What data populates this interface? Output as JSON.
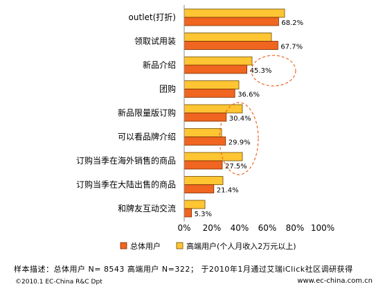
{
  "chart_data": {
    "type": "bar",
    "orientation": "horizontal",
    "categories": [
      "outlet(打折)",
      "领取试用装",
      "新品介绍",
      "团购",
      "新品限量版订购",
      "可以看品牌介绍",
      "订购当季在海外销售的商品",
      "订购当季在大陆出售的商品",
      "和牌友互动交流"
    ],
    "series": [
      {
        "name": "高端用户(个人月收入2万元以上)",
        "values": [
          72.5,
          63.0,
          49.0,
          39.5,
          42.0,
          27.0,
          42.0,
          28.0,
          15.0
        ],
        "color": "#FFC533"
      },
      {
        "name": "总体用户",
        "values": [
          68.2,
          67.7,
          45.3,
          36.6,
          30.4,
          29.9,
          27.5,
          21.4,
          5.3
        ],
        "color": "#F06520"
      }
    ],
    "data_labels": [
      "68.2%",
      "67.7%",
      "45.3%",
      "36.6%",
      "30.4%",
      "29.9%",
      "27.5%",
      "21.4%",
      "5.3%"
    ],
    "xlim": [
      0,
      100
    ],
    "xticks": [
      "0%",
      "20%",
      "40%",
      "60%",
      "80%",
      "100%"
    ],
    "grid": false,
    "legend_position": "bottom"
  },
  "legend": {
    "total_label": "总体用户",
    "high_label": "高端用户(个人月收入2万元以上)"
  },
  "footer": {
    "note": "样本描述：总体用户 N= 8543  高端用户 N=322；  于2010年1月通过艾瑞iClick社区调研获得",
    "copyright": "©2010.1 EC-China R&C Dpt",
    "url": "www.ec-china.com.cn"
  }
}
